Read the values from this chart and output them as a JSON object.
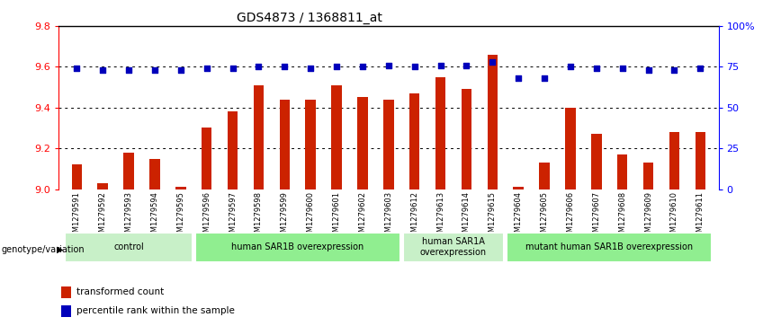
{
  "title": "GDS4873 / 1368811_at",
  "samples": [
    "GSM1279591",
    "GSM1279592",
    "GSM1279593",
    "GSM1279594",
    "GSM1279595",
    "GSM1279596",
    "GSM1279597",
    "GSM1279598",
    "GSM1279599",
    "GSM1279600",
    "GSM1279601",
    "GSM1279602",
    "GSM1279603",
    "GSM1279612",
    "GSM1279613",
    "GSM1279614",
    "GSM1279615",
    "GSM1279604",
    "GSM1279605",
    "GSM1279606",
    "GSM1279607",
    "GSM1279608",
    "GSM1279609",
    "GSM1279610",
    "GSM1279611"
  ],
  "bar_values": [
    9.12,
    9.03,
    9.18,
    9.15,
    9.01,
    9.3,
    9.38,
    9.51,
    9.44,
    9.44,
    9.51,
    9.45,
    9.44,
    9.47,
    9.55,
    9.49,
    9.66,
    9.01,
    9.13,
    9.4,
    9.27,
    9.17,
    9.13,
    9.28,
    9.28
  ],
  "percentile_values": [
    74,
    73,
    73,
    73,
    73,
    74,
    74,
    75,
    75,
    74,
    75,
    75,
    76,
    75,
    76,
    76,
    78,
    68,
    68,
    75,
    74,
    74,
    73,
    73,
    74
  ],
  "ylim_left": [
    9.0,
    9.8
  ],
  "ylim_right": [
    0,
    100
  ],
  "yticks_left": [
    9.0,
    9.2,
    9.4,
    9.6,
    9.8
  ],
  "yticks_right": [
    0,
    25,
    50,
    75,
    100
  ],
  "ytick_labels_right": [
    "0",
    "25",
    "50",
    "75",
    "100%"
  ],
  "bar_color": "#cc2200",
  "dot_color": "#0000bb",
  "groups": [
    {
      "label": "control",
      "start": 0,
      "end": 4,
      "color": "#c8f0c8"
    },
    {
      "label": "human SAR1B overexpression",
      "start": 5,
      "end": 12,
      "color": "#90ee90"
    },
    {
      "label": "human SAR1A\noverexpression",
      "start": 13,
      "end": 16,
      "color": "#c8f0c8"
    },
    {
      "label": "mutant human SAR1B overexpression",
      "start": 17,
      "end": 24,
      "color": "#90ee90"
    }
  ],
  "bg_color": "#ffffff",
  "bar_width": 0.4,
  "ybase": 9.0
}
